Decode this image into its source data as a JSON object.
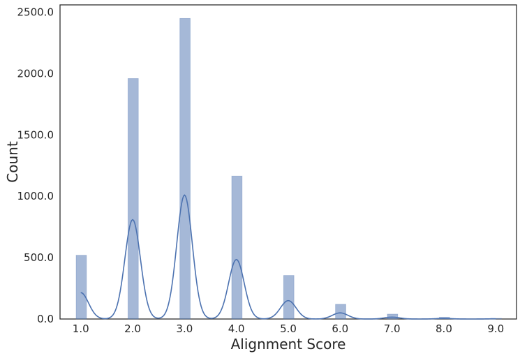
{
  "chart_data": {
    "type": "bar",
    "title": "",
    "xlabel": "Alignment Score",
    "ylabel": "Count",
    "xlim": [
      0.6,
      9.4
    ],
    "ylim": [
      0,
      2560
    ],
    "grid": false,
    "bar_width": 0.2,
    "x_ticks": [
      1,
      2,
      3,
      4,
      5,
      6,
      7,
      8,
      9
    ],
    "x_tick_labels": [
      "1.0",
      "2.0",
      "3.0",
      "4.0",
      "5.0",
      "6.0",
      "7.0",
      "8.0",
      "9.0"
    ],
    "y_ticks": [
      0,
      500,
      1000,
      1500,
      2000,
      2500
    ],
    "y_tick_labels": [
      "0.0",
      "500.0",
      "1000.0",
      "1500.0",
      "2000.0",
      "2500.0"
    ],
    "bars": [
      {
        "x": 1,
        "count": 520
      },
      {
        "x": 2,
        "count": 1960
      },
      {
        "x": 3,
        "count": 2450
      },
      {
        "x": 4,
        "count": 1165
      },
      {
        "x": 5,
        "count": 355
      },
      {
        "x": 6,
        "count": 120
      },
      {
        "x": 7,
        "count": 40
      },
      {
        "x": 8,
        "count": 15
      },
      {
        "x": 9,
        "count": 5
      }
    ],
    "kde_peaks": [
      {
        "x": 1.0,
        "y": 215
      },
      {
        "x": 2.0,
        "y": 810
      },
      {
        "x": 3.0,
        "y": 1010
      },
      {
        "x": 4.0,
        "y": 485
      },
      {
        "x": 5.0,
        "y": 150
      },
      {
        "x": 6.0,
        "y": 50
      },
      {
        "x": 7.0,
        "y": 15
      },
      {
        "x": 8.0,
        "y": 5
      },
      {
        "x": 9.0,
        "y": 2
      }
    ],
    "bar_color": "#4c72b0",
    "line_color": "#4c72b0"
  }
}
